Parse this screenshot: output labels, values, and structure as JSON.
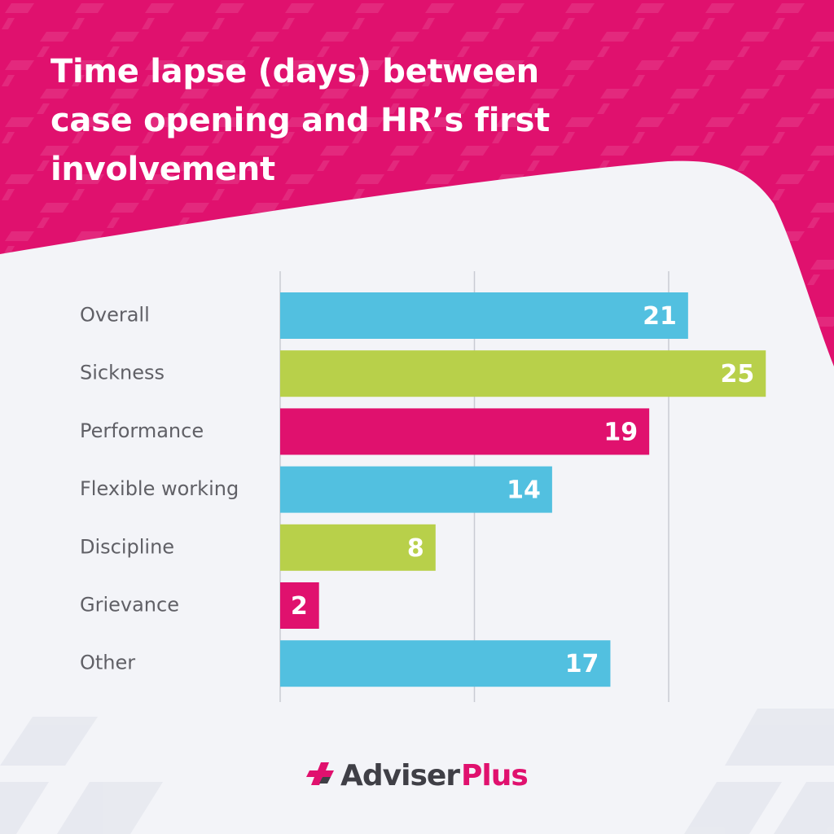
{
  "title_lines": [
    "Time lapse (days) between",
    "case opening and HR’s first",
    "involvement"
  ],
  "colors": {
    "brand_pink": "#e0116e",
    "bar_blue": "#52c0e0",
    "bar_green": "#b8d04a",
    "bar_pink": "#e0116e",
    "background": "#f3f4f8",
    "grid": "#c9cbd3",
    "label_text": "#606066",
    "logo_dark": "#3f3f46"
  },
  "logo": {
    "part1": "Adviser",
    "part2": "Plus",
    "icon": "adviserplus-logo-icon"
  },
  "chart_data": {
    "type": "bar",
    "orientation": "horizontal",
    "title": "Time lapse (days) between case opening and HR’s first involvement",
    "categories": [
      "Overall",
      "Sickness",
      "Performance",
      "Flexible working",
      "Discipline",
      "Grievance",
      "Other"
    ],
    "values": [
      21,
      25,
      19,
      14,
      8,
      2,
      17
    ],
    "bar_colors": [
      "#52c0e0",
      "#b8d04a",
      "#e0116e",
      "#52c0e0",
      "#b8d04a",
      "#e0116e",
      "#52c0e0"
    ],
    "data_labels": [
      "21",
      "25",
      "19",
      "14",
      "8",
      "2",
      "17"
    ],
    "xlim": [
      0,
      25
    ],
    "gridlines": [
      0,
      10,
      20
    ],
    "x_tick_labels_shown": false,
    "grid": true,
    "legend": false,
    "xlabel": "",
    "ylabel": ""
  }
}
